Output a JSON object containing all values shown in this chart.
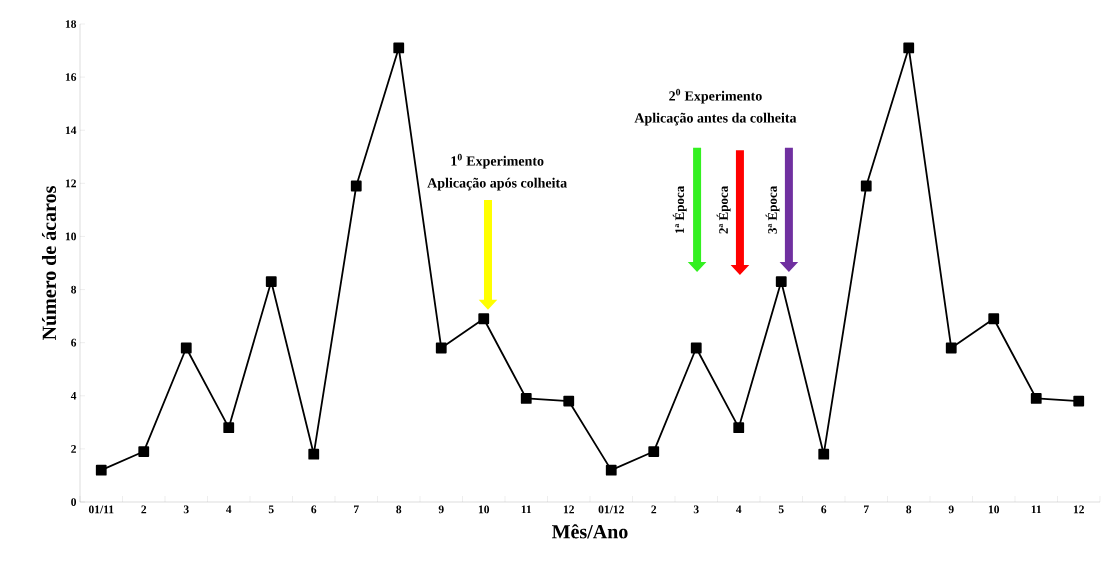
{
  "chart_data": {
    "type": "line",
    "xlabel": "Mês/Ano",
    "ylabel": "Número de ácaros",
    "categories": [
      "01/11",
      "2",
      "3",
      "4",
      "5",
      "6",
      "7",
      "8",
      "9",
      "10",
      "11",
      "12",
      "01/12",
      "2",
      "3",
      "4",
      "5",
      "6",
      "7",
      "8",
      "9",
      "10",
      "11",
      "12"
    ],
    "values": [
      1.2,
      1.9,
      5.8,
      2.8,
      8.3,
      1.8,
      11.9,
      17.1,
      5.8,
      6.9,
      3.9,
      3.8,
      1.2,
      1.9,
      5.8,
      2.8,
      8.3,
      1.8,
      11.9,
      17.1,
      5.8,
      6.9,
      3.9,
      3.8
    ],
    "color": "#000000",
    "marker": "square",
    "line_style": "solid",
    "ylim": [
      0,
      18
    ],
    "yticks": [
      0,
      2,
      4,
      6,
      8,
      10,
      12,
      14,
      16,
      18
    ],
    "annotations": [
      "1$^{0}$ Experimento",
      "Aplicação após colheita",
      "2$^{0}$ Experimento",
      "Aplicação antes da colheita",
      "1ª Época",
      "2ª Época",
      "3ª Época"
    ]
  }
}
